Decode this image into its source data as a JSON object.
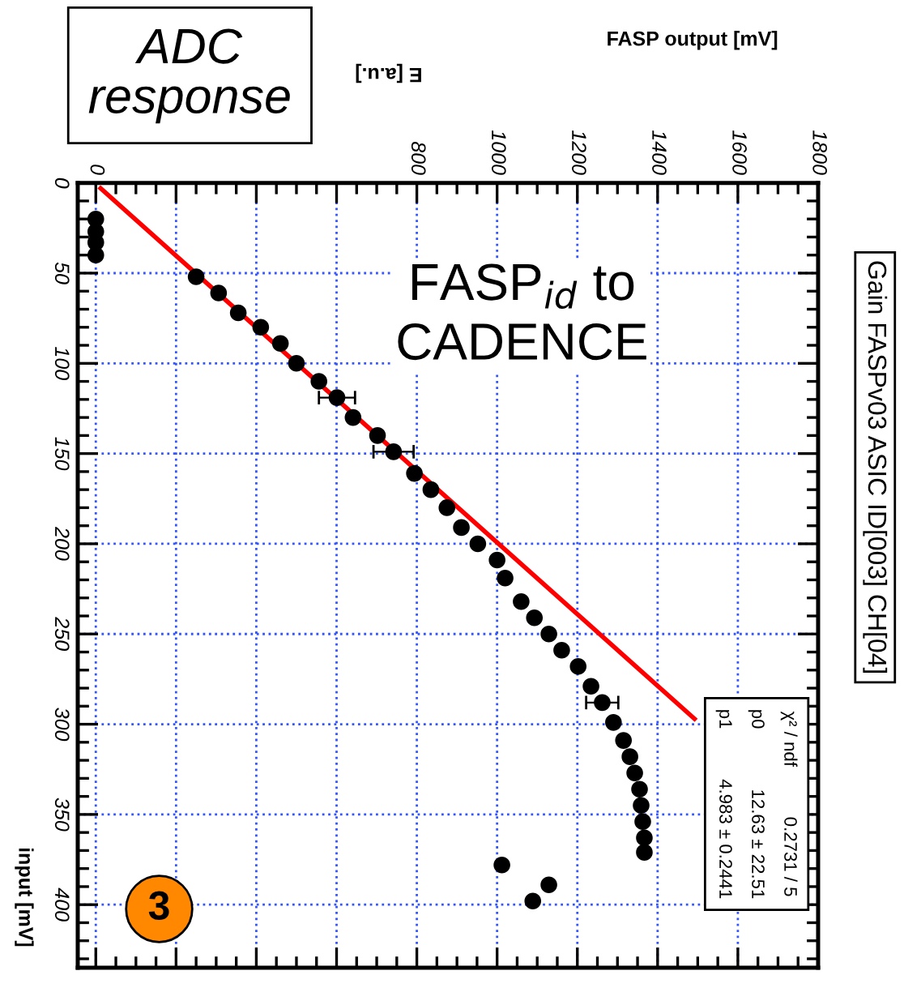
{
  "chart_data": {
    "type": "scatter",
    "title": "Gain FASPv03 ASIC ID[003] CH[04]",
    "xlabel": "FASP output [mV]",
    "ylabel": "input [mV]",
    "annotations": [
      "ADC\nresponse",
      "E [a.u.]",
      "FASP$_{id}$ to\nCADENCE",
      "3",
      "χ² / ndf          0.2731 / 5",
      "p0            12.63 ± 22.51",
      "p1          4.983 ± 0.2441"
    ],
    "series": [
      {
        "marker": "circle",
        "color": "#000000",
        "x": [
          0,
          0,
          0,
          0,
          250,
          306,
          355,
          411,
          460,
          500,
          556,
          601,
          641,
          702,
          742,
          794,
          835,
          875,
          911,
          952,
          1000,
          1020,
          1060,
          1093,
          1129,
          1161,
          1202,
          1234,
          1262,
          1290,
          1315,
          1331,
          1343,
          1355,
          1359,
          1363,
          1367,
          1367,
          1012,
          1129,
          1089
        ],
        "values": [
          20,
          27,
          33,
          40,
          52,
          61,
          72,
          80,
          89,
          100,
          110,
          119,
          130,
          140,
          149,
          161,
          170,
          180,
          191,
          200,
          209,
          219,
          232,
          241,
          250,
          259,
          268,
          279,
          288,
          299,
          309,
          318,
          327,
          336,
          345,
          354,
          363,
          371,
          378,
          389,
          398
        ],
        "xerrors": [
          null,
          null,
          null,
          null,
          null,
          null,
          null,
          null,
          null,
          null,
          null,
          45,
          null,
          null,
          50,
          null,
          null,
          null,
          null,
          null,
          null,
          null,
          null,
          null,
          null,
          null,
          null,
          null,
          40,
          null,
          null,
          null,
          null,
          null,
          null,
          null,
          null,
          null,
          null,
          null,
          null
        ]
      },
      {
        "type": "line",
        "color": "#ff0000",
        "x": [
          12,
          1492
        ],
        "values": [
          3,
          297
        ]
      }
    ],
    "xlim": [
      -45,
      1800
    ],
    "xticks": [
      0,
      {
        "value": 200,
        "label": null
      },
      {
        "value": 400,
        "label": null
      },
      {
        "value": 600,
        "label": null
      },
      800,
      1000,
      1200,
      1400,
      1600,
      1800
    ],
    "ylim": [
      435,
      0
    ],
    "yticks": [
      0,
      50,
      100,
      150,
      200,
      250,
      300,
      350,
      400
    ],
    "grid": true
  }
}
